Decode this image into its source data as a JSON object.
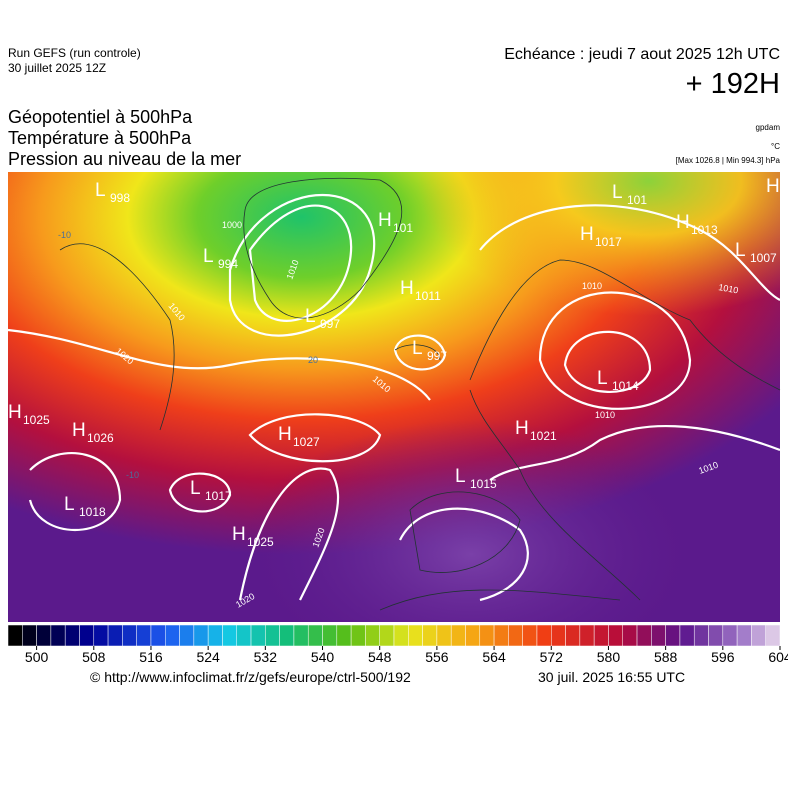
{
  "header": {
    "run": "Run GEFS (run controle)",
    "run_date": "30 juillet 2025 12Z",
    "valid": "Echéance : jeudi 7 aout 2025 12h UTC",
    "lead": "+ 192H"
  },
  "fields": [
    "Géopotentiel à 500hPa",
    "Température à 500hPa",
    "Pression au niveau de la mer"
  ],
  "units": {
    "geopotential": "gpdam",
    "temperature": "°C",
    "pressure": "[Max 1026.8 | Min 994.3] hPa"
  },
  "pressure_centers": [
    {
      "type": "L",
      "value": "998"
    },
    {
      "type": "L",
      "value": "994"
    },
    {
      "type": "H",
      "value": "101"
    },
    {
      "type": "L",
      "value": "997"
    },
    {
      "type": "H",
      "value": "1011"
    },
    {
      "type": "L",
      "value": "997"
    },
    {
      "type": "H",
      "value": "1025"
    },
    {
      "type": "H",
      "value": "1026"
    },
    {
      "type": "H",
      "value": "1027"
    },
    {
      "type": "L",
      "value": "1017"
    },
    {
      "type": "L",
      "value": "1018"
    },
    {
      "type": "H",
      "value": "1025"
    },
    {
      "type": "L",
      "value": "1015"
    },
    {
      "type": "H",
      "value": "1021"
    },
    {
      "type": "L",
      "value": "1014"
    },
    {
      "type": "H",
      "value": "1017"
    },
    {
      "type": "L",
      "value": "1007"
    },
    {
      "type": "L",
      "value": "101"
    },
    {
      "type": "H",
      "value": "1013"
    },
    {
      "type": "H"
    }
  ],
  "isobar_labels": [
    "1000",
    "1010",
    "1010",
    "1020",
    "1020",
    "1020",
    "1010",
    "1010",
    "1010",
    "1010",
    "1010"
  ],
  "temperature_labels": [
    "-10",
    "-10",
    "20"
  ],
  "colorbar": {
    "ticks": [
      500,
      508,
      516,
      524,
      532,
      540,
      548,
      556,
      564,
      572,
      580,
      588,
      596,
      604
    ],
    "lim": [
      496,
      604
    ]
  },
  "footer": {
    "url": "© http://www.infoclimat.fr/z/gefs/europe/ctrl-500/192",
    "generated": "30 juil. 2025 16:55 UTC"
  }
}
